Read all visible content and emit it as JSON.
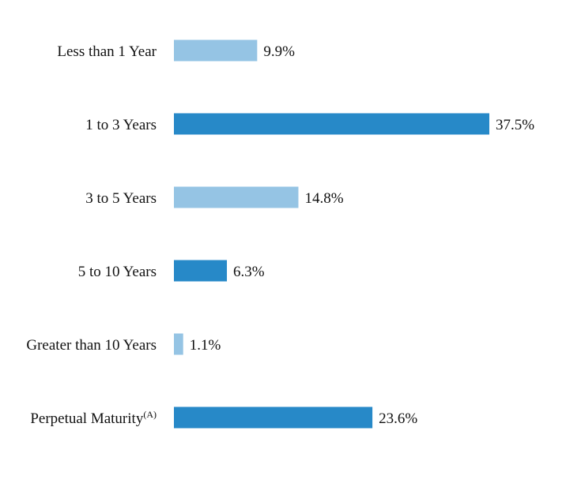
{
  "chart_data": {
    "type": "bar",
    "orientation": "horizontal",
    "categories": [
      {
        "label": "Less than 1 Year",
        "superscript": ""
      },
      {
        "label": "1 to 3 Years",
        "superscript": ""
      },
      {
        "label": "3 to 5 Years",
        "superscript": ""
      },
      {
        "label": "5 to 10 Years",
        "superscript": ""
      },
      {
        "label": "Greater than 10 Years",
        "superscript": ""
      },
      {
        "label": "Perpetual Maturity",
        "superscript": "(A)"
      }
    ],
    "values": [
      9.9,
      37.5,
      14.8,
      6.3,
      1.1,
      23.6
    ],
    "value_labels": [
      "9.9%",
      "37.5%",
      "14.8%",
      "6.3%",
      "1.1%",
      "23.6%"
    ],
    "bar_colors": [
      "#95c4e4",
      "#2789c8",
      "#95c4e4",
      "#2789c8",
      "#95c4e4",
      "#2789c8"
    ],
    "xlim": [
      0,
      37.5
    ],
    "grid": false,
    "legend": "none"
  }
}
